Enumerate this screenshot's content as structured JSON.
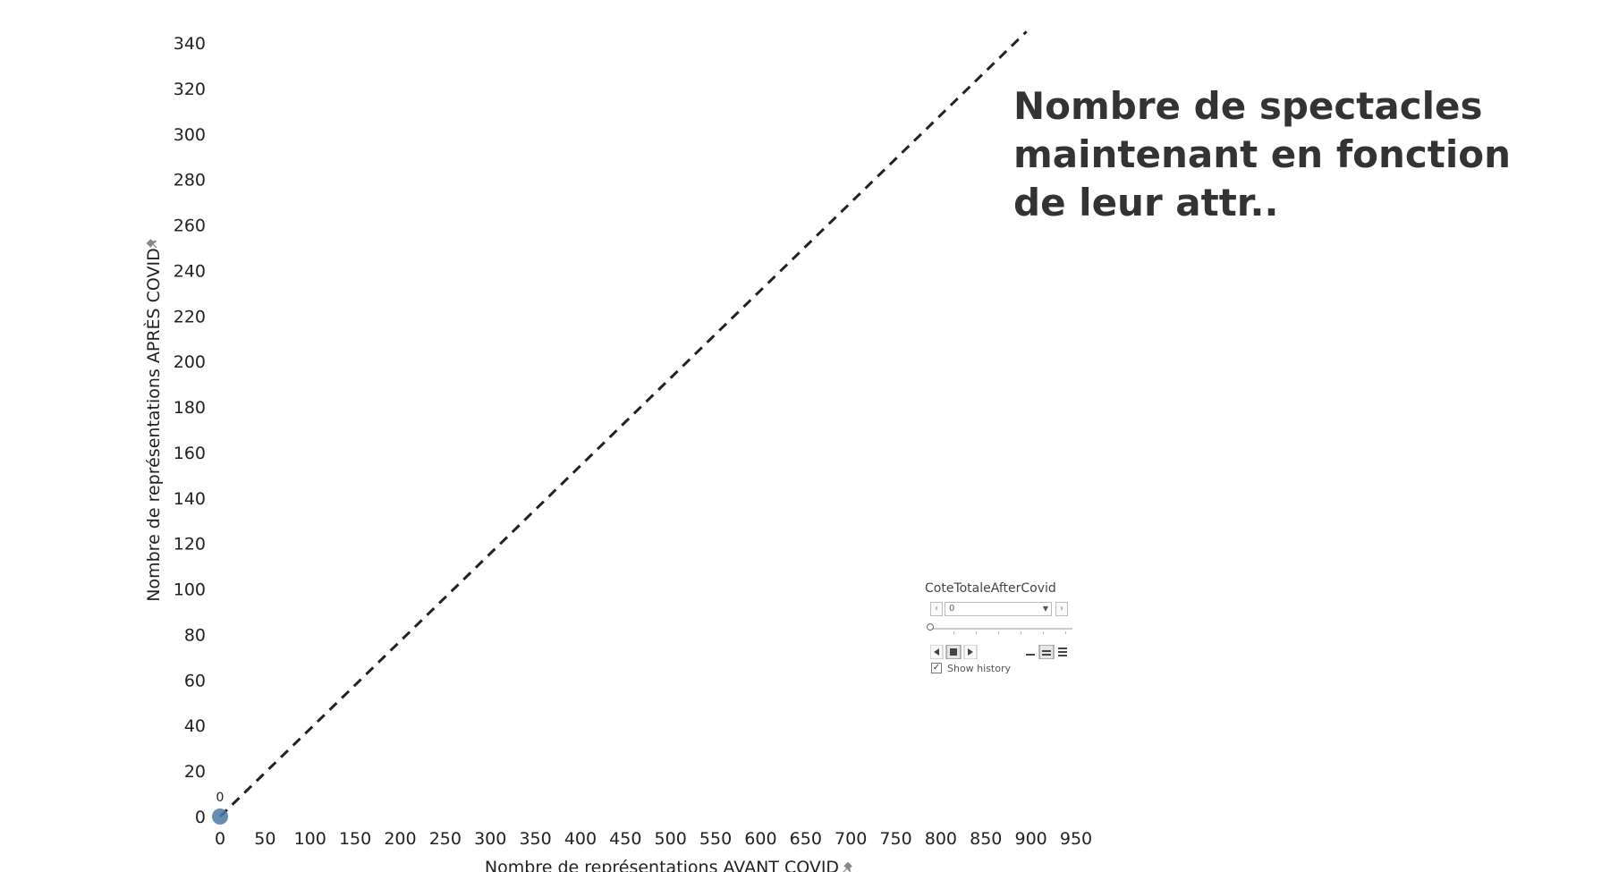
{
  "chart_data": {
    "type": "scatter",
    "title": "Nombre de spectacles maintenant en fonction de leur attr..",
    "xlabel": "Nombre de représentations AVANT COVID",
    "ylabel": "Nombre de représentations APRÈS COVID",
    "xlim": [
      0,
      950
    ],
    "ylim": [
      0,
      340
    ],
    "x_ticks": [
      "0",
      "50",
      "100",
      "150",
      "200",
      "250",
      "300",
      "350",
      "400",
      "450",
      "500",
      "550",
      "600",
      "650",
      "700",
      "750",
      "800",
      "850",
      "900",
      "950"
    ],
    "y_ticks": [
      "0",
      "20",
      "40",
      "60",
      "80",
      "100",
      "120",
      "140",
      "160",
      "180",
      "200",
      "220",
      "240",
      "260",
      "280",
      "300",
      "320",
      "340"
    ],
    "points": [
      {
        "x": 0,
        "y": 0,
        "label": "0"
      }
    ],
    "reference_line": {
      "style": "dashed",
      "from": [
        0,
        0
      ],
      "to": [
        895,
        345
      ]
    },
    "grid": false,
    "colors": {
      "point": "#4e79a7",
      "reference_line": "#222222"
    }
  },
  "page_control": {
    "title": "CoteTotaleAfterCovid",
    "value": "0",
    "show_history_label": "Show history",
    "show_history_checked": true
  },
  "icons": {
    "prev": "chevron-left-icon",
    "next": "chevron-right-icon",
    "dropdown": "caret-down-icon",
    "pin": "pin-icon"
  }
}
